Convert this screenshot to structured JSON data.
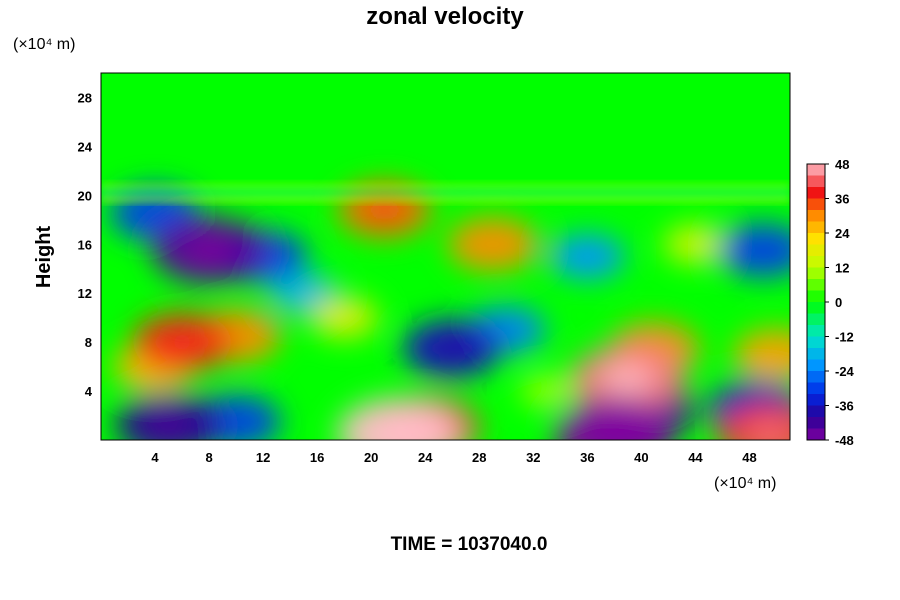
{
  "chart_data": {
    "type": "heatmap",
    "title": "zonal velocity",
    "ylabel": "Height",
    "xlabel": "",
    "x_unit": "(×10⁴ m)",
    "y_unit": "(×10⁴ m)",
    "xlim": [
      0,
      51
    ],
    "ylim": [
      0,
      30
    ],
    "x_ticks": [
      "4",
      "8",
      "12",
      "16",
      "20",
      "24",
      "28",
      "32",
      "36",
      "40",
      "44",
      "48"
    ],
    "y_ticks": [
      "4",
      "8",
      "12",
      "16",
      "20",
      "24",
      "28"
    ],
    "colorbar": {
      "range": [
        -48,
        48
      ],
      "ticks": [
        "48",
        "36",
        "24",
        "12",
        "0",
        "-12",
        "-24",
        "-36",
        "-48"
      ]
    },
    "features": [
      {
        "x": 38,
        "y": 0.5,
        "value": -48
      },
      {
        "x": 40,
        "y": 2.5,
        "value": -40
      },
      {
        "x": 22,
        "y": 0.5,
        "value": 48
      },
      {
        "x": 24,
        "y": 1.0,
        "value": 40
      },
      {
        "x": 39,
        "y": 5.0,
        "value": 44
      },
      {
        "x": 41,
        "y": 7.5,
        "value": 30
      },
      {
        "x": 6,
        "y": 8.0,
        "value": 36
      },
      {
        "x": 10,
        "y": 8.5,
        "value": 30
      },
      {
        "x": 4,
        "y": 6.0,
        "value": 26
      },
      {
        "x": 5,
        "y": 1.2,
        "value": -40
      },
      {
        "x": 10,
        "y": 1.5,
        "value": -30
      },
      {
        "x": 26,
        "y": 7.5,
        "value": -36
      },
      {
        "x": 30,
        "y": 9.0,
        "value": -24
      },
      {
        "x": 8,
        "y": 15.5,
        "value": -44
      },
      {
        "x": 12,
        "y": 15.0,
        "value": -30
      },
      {
        "x": 4,
        "y": 18.5,
        "value": -30
      },
      {
        "x": 21,
        "y": 18.8,
        "value": 32
      },
      {
        "x": 29,
        "y": 16.0,
        "value": 30
      },
      {
        "x": 49.5,
        "y": 0.5,
        "value": 40
      },
      {
        "x": 48.5,
        "y": 2.5,
        "value": -34
      },
      {
        "x": 50,
        "y": 7.0,
        "value": 28
      },
      {
        "x": 49,
        "y": 15.5,
        "value": -30
      },
      {
        "x": 36,
        "y": 15.0,
        "value": -22
      },
      {
        "x": 44,
        "y": 16.0,
        "value": 16
      },
      {
        "x": 15,
        "y": 12.0,
        "value": -18
      },
      {
        "x": 18,
        "y": 10.0,
        "value": 18
      },
      {
        "x": 33,
        "y": 4.0,
        "value": 10
      }
    ]
  },
  "footer": {
    "time_label": "TIME = 1037040.0"
  }
}
